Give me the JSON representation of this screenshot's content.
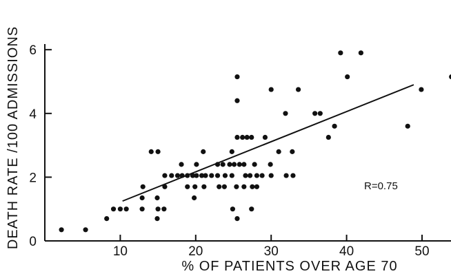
{
  "chart_data": {
    "type": "scatter",
    "title": "",
    "xlabel": "% OF PATIENTS OVER AGE 70",
    "ylabel": "DEATH RATE /100 ADMISSIONS",
    "xlim": [
      0,
      54
    ],
    "ylim": [
      0,
      6.5
    ],
    "x_ticks": [
      10,
      20,
      30,
      40,
      50
    ],
    "y_ticks": [
      0,
      2,
      4,
      6
    ],
    "annotation": "R=0.75",
    "grid": false,
    "regression_line": {
      "x": [
        10.3,
        48.9
      ],
      "y": [
        1.25,
        4.9
      ]
    },
    "points": [
      [
        2.2,
        0.35
      ],
      [
        5.4,
        0.35
      ],
      [
        8.2,
        0.7
      ],
      [
        9.1,
        1.0
      ],
      [
        10.0,
        1.0
      ],
      [
        10.8,
        1.0
      ],
      [
        12.9,
        1.0
      ],
      [
        12.9,
        1.35
      ],
      [
        13.0,
        1.7
      ],
      [
        14.1,
        2.8
      ],
      [
        14.9,
        0.7
      ],
      [
        14.9,
        1.35
      ],
      [
        15.0,
        1.0
      ],
      [
        15.0,
        2.8
      ],
      [
        15.8,
        1.0
      ],
      [
        15.9,
        1.7
      ],
      [
        15.9,
        2.05
      ],
      [
        16.8,
        2.05
      ],
      [
        17.6,
        2.05
      ],
      [
        18.1,
        2.4
      ],
      [
        18.2,
        2.05
      ],
      [
        18.9,
        2.05
      ],
      [
        18.9,
        1.7
      ],
      [
        19.6,
        2.05
      ],
      [
        19.8,
        1.35
      ],
      [
        19.9,
        1.7
      ],
      [
        20.1,
        2.4
      ],
      [
        20.1,
        2.05
      ],
      [
        20.8,
        2.05
      ],
      [
        21.0,
        2.8
      ],
      [
        21.1,
        1.7
      ],
      [
        21.3,
        2.05
      ],
      [
        22.1,
        2.05
      ],
      [
        22.9,
        2.05
      ],
      [
        22.9,
        2.4
      ],
      [
        23.1,
        1.7
      ],
      [
        23.6,
        2.4
      ],
      [
        23.8,
        1.7
      ],
      [
        23.9,
        2.05
      ],
      [
        24.5,
        2.4
      ],
      [
        24.8,
        2.8
      ],
      [
        24.8,
        2.05
      ],
      [
        24.9,
        1.0
      ],
      [
        25.1,
        2.4
      ],
      [
        25.4,
        1.7
      ],
      [
        25.5,
        5.15
      ],
      [
        25.5,
        4.4
      ],
      [
        25.5,
        3.25
      ],
      [
        25.5,
        0.7
      ],
      [
        25.8,
        2.4
      ],
      [
        26.2,
        3.25
      ],
      [
        26.4,
        2.4
      ],
      [
        26.4,
        1.7
      ],
      [
        26.6,
        2.05
      ],
      [
        26.8,
        3.25
      ],
      [
        27.2,
        2.05
      ],
      [
        27.4,
        3.25
      ],
      [
        27.4,
        1.0
      ],
      [
        27.5,
        1.7
      ],
      [
        27.8,
        2.4
      ],
      [
        28.1,
        2.05
      ],
      [
        28.1,
        1.7
      ],
      [
        28.8,
        2.05
      ],
      [
        29.2,
        3.25
      ],
      [
        29.9,
        2.4
      ],
      [
        30.0,
        4.75
      ],
      [
        30.0,
        2.05
      ],
      [
        31.0,
        2.8
      ],
      [
        31.9,
        4.0
      ],
      [
        32.0,
        2.05
      ],
      [
        32.8,
        2.8
      ],
      [
        32.9,
        2.05
      ],
      [
        33.6,
        4.75
      ],
      [
        35.8,
        4.0
      ],
      [
        36.5,
        4.0
      ],
      [
        37.6,
        3.25
      ],
      [
        38.4,
        3.6
      ],
      [
        39.2,
        5.9
      ],
      [
        40.1,
        5.15
      ],
      [
        41.9,
        5.9
      ],
      [
        48.1,
        3.6
      ],
      [
        49.9,
        4.75
      ],
      [
        53.9,
        5.15
      ]
    ]
  }
}
